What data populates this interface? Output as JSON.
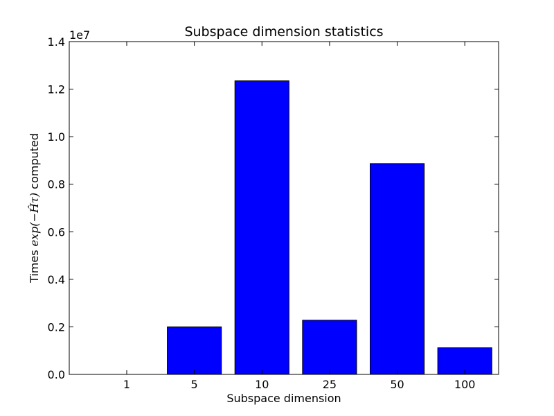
{
  "chart_data": {
    "type": "bar",
    "title": "Subspace dimension statistics",
    "xlabel": "Subspace dimension",
    "ylabel": {
      "prefix": "Times ",
      "math": "exp(−Ĥτ)",
      "suffix": " computed"
    },
    "offset_label": "1e7",
    "categories": [
      "1",
      "5",
      "10",
      "25",
      "50",
      "100"
    ],
    "values": [
      0,
      2000000,
      12350000,
      2280000,
      8870000,
      1120000
    ],
    "ylim": [
      0,
      14000000
    ],
    "yticks": [
      0,
      2000000,
      4000000,
      6000000,
      8000000,
      10000000,
      12000000,
      14000000
    ],
    "ytick_labels": [
      "0.0",
      "0.2",
      "0.4",
      "0.6",
      "0.8",
      "1.0",
      "1.2",
      "1.4"
    ],
    "bar_color": "#0000ff",
    "grid": false,
    "legend": "none"
  }
}
